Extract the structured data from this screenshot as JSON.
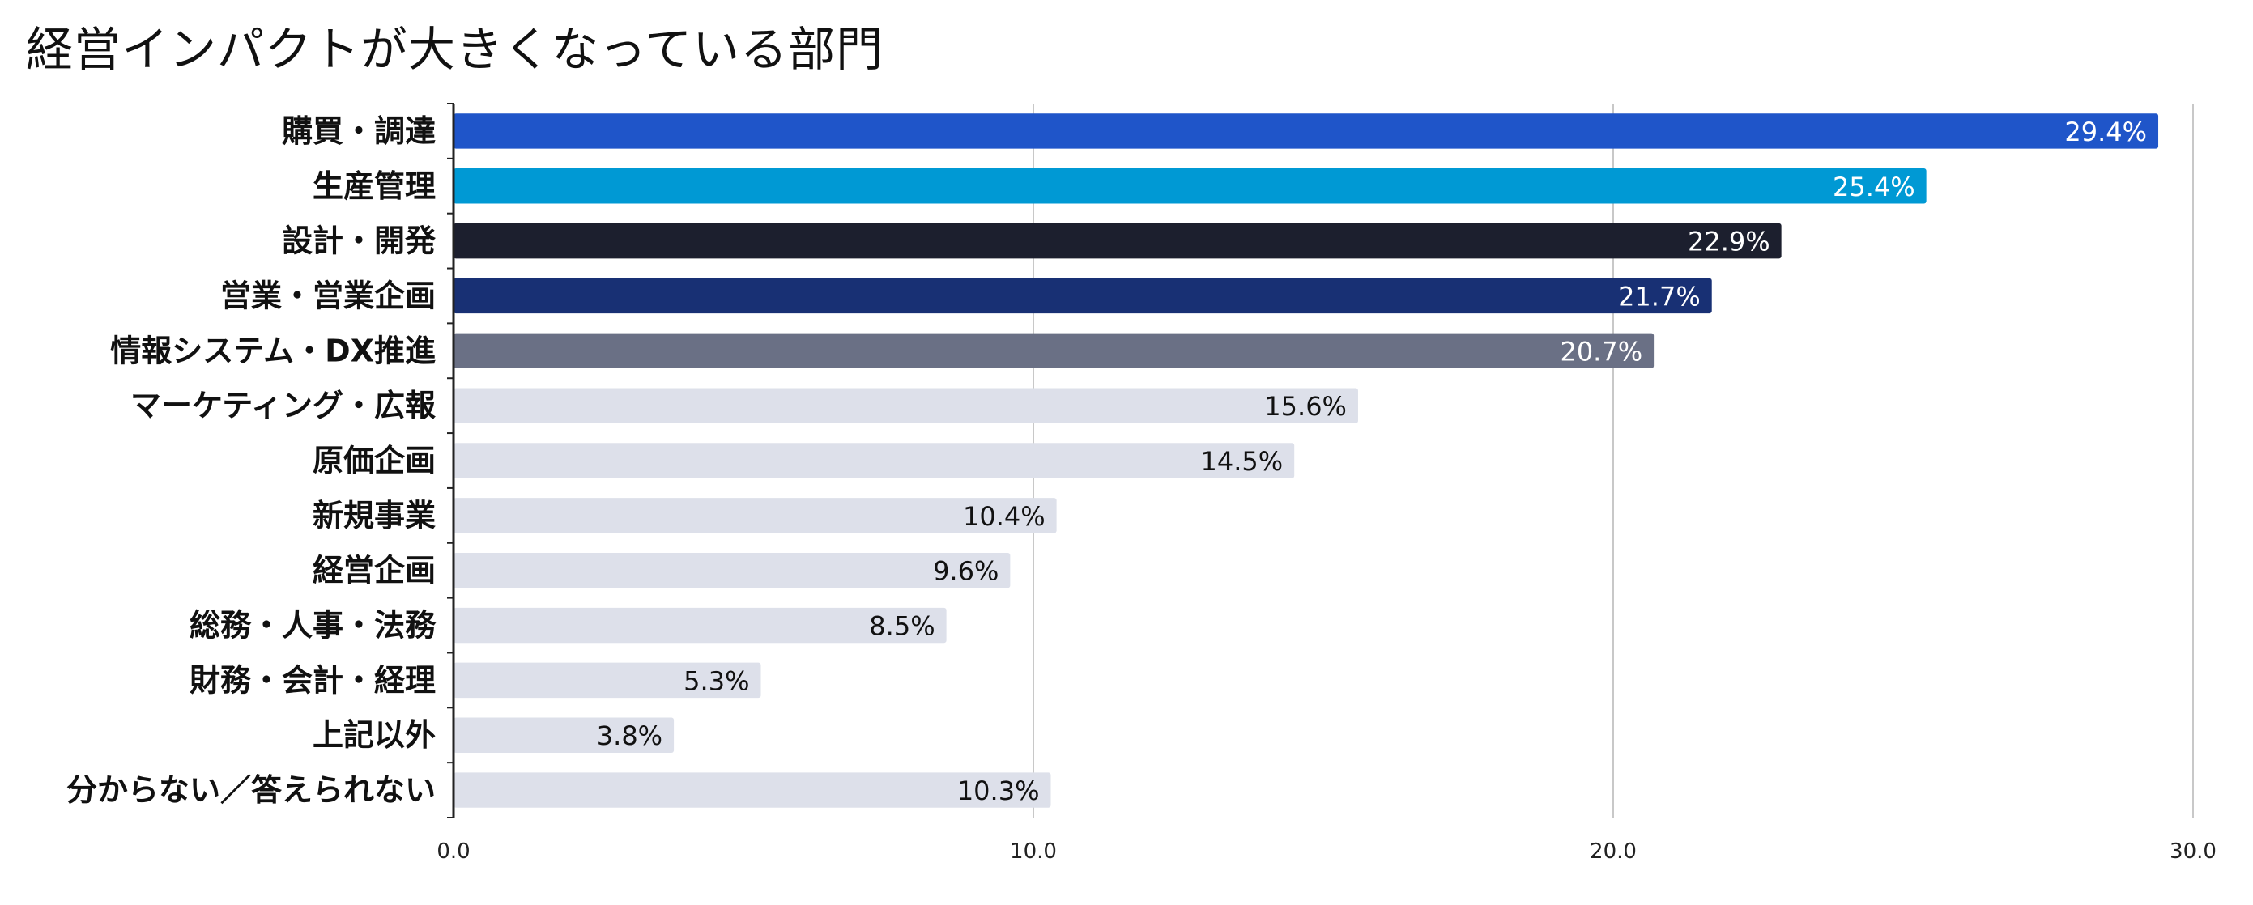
{
  "chart_data": {
    "type": "bar",
    "orientation": "horizontal",
    "title": "経営インパクトが大きくなっている部門",
    "categories": [
      "購買・調達",
      "生産管理",
      "設計・開発",
      "営業・営業企画",
      "情報システム・DX推進",
      "マーケティング・広報",
      "原価企画",
      "新規事業",
      "経営企画",
      "総務・人事・法務",
      "財務・会計・経理",
      "上記以外",
      "分からない／答えられない"
    ],
    "values": [
      29.4,
      25.4,
      22.9,
      21.7,
      20.7,
      15.6,
      14.5,
      10.4,
      9.6,
      8.5,
      5.3,
      3.8,
      10.3
    ],
    "value_labels": [
      "29.4%",
      "25.4%",
      "22.9%",
      "21.7%",
      "20.7%",
      "15.6%",
      "14.5%",
      "10.4%",
      "9.6%",
      "8.5%",
      "5.3%",
      "3.8%",
      "10.3%"
    ],
    "bar_colors": [
      "#1f55c9",
      "#0099d4",
      "#1c1f2e",
      "#183074",
      "#6a7085",
      "#dde0ea",
      "#dde0ea",
      "#dde0ea",
      "#dde0ea",
      "#dde0ea",
      "#dde0ea",
      "#dde0ea",
      "#dde0ea"
    ],
    "label_colors": [
      "#ffffff",
      "#ffffff",
      "#ffffff",
      "#ffffff",
      "#ffffff",
      "#111111",
      "#111111",
      "#111111",
      "#111111",
      "#111111",
      "#111111",
      "#111111",
      "#111111"
    ],
    "xlim": [
      0,
      30
    ],
    "xticks": [
      "0.0",
      "10.0",
      "20.0",
      "30.0"
    ],
    "grid": true
  }
}
